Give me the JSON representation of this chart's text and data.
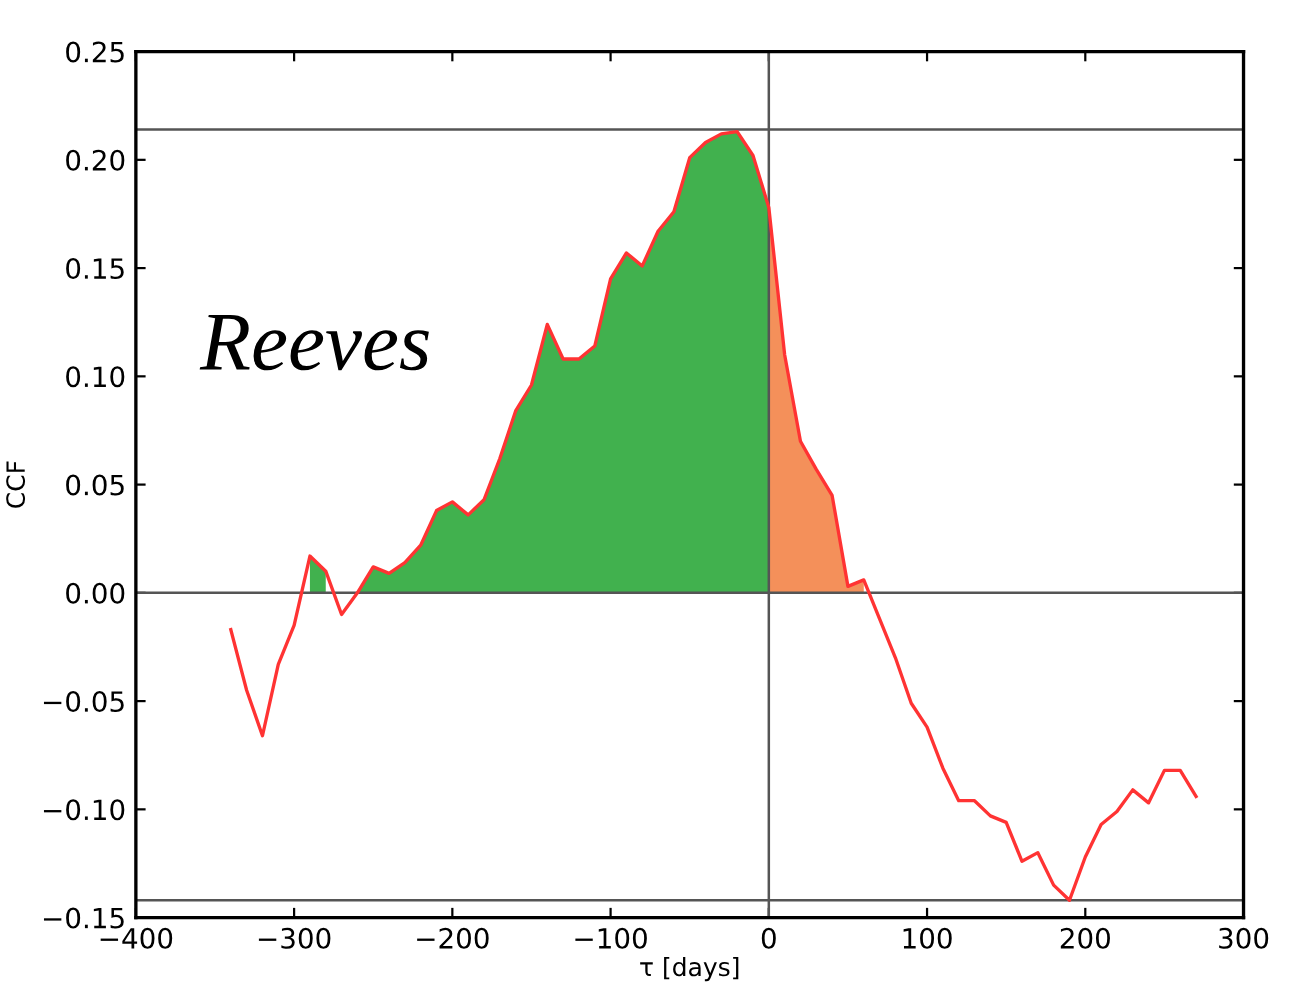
{
  "chart_data": {
    "type": "line",
    "xlabel": "τ [days]",
    "ylabel": "CCF",
    "xlim": [
      -400,
      300
    ],
    "ylim": [
      -0.15,
      0.25
    ],
    "xticks": [
      {
        "value": -400,
        "label": "−400"
      },
      {
        "value": -300,
        "label": "−300"
      },
      {
        "value": -200,
        "label": "−200"
      },
      {
        "value": -100,
        "label": "−100"
      },
      0,
      100,
      200,
      300
    ],
    "yticks": [
      {
        "value": -0.15,
        "label": "−0.15"
      },
      {
        "value": -0.1,
        "label": "−0.10"
      },
      {
        "value": -0.05,
        "label": "−0.05"
      },
      {
        "value": 0,
        "label": "0.00"
      },
      {
        "value": 0.05,
        "label": "0.05"
      },
      {
        "value": 0.1,
        "label": "0.10"
      },
      {
        "value": 0.15,
        "label": "0.15"
      },
      {
        "value": 0.2,
        "label": "0.20"
      },
      {
        "value": 0.25,
        "label": "0.25"
      }
    ],
    "grid": false,
    "annotations": [
      "Reeves"
    ],
    "ref_lines": [
      {
        "axis": "y",
        "value": 0,
        "color": "#555555"
      },
      {
        "axis": "x",
        "value": 0,
        "color": "#555555"
      },
      {
        "axis": "y",
        "value": 0.214,
        "color": "#555555"
      },
      {
        "axis": "y",
        "value": -0.142,
        "color": "#555555"
      }
    ],
    "series": [
      {
        "type": "area",
        "color": "#41b14e",
        "x": [
          -290,
          -280,
          -270,
          -260,
          -250,
          -240,
          -230,
          -220,
          -210,
          -200,
          -190,
          -180,
          -170,
          -160,
          -150,
          -140,
          -130,
          -120,
          -110,
          -100,
          -90,
          -80,
          -70,
          -60,
          -50,
          -40,
          -30,
          -20,
          -10,
          0
        ],
        "values": [
          0.017,
          0.01,
          null,
          0.0,
          0.012,
          0.009,
          0.014,
          0.022,
          0.038,
          0.042,
          0.036,
          0.043,
          0.062,
          0.084,
          0.096,
          0.124,
          0.108,
          0.108,
          0.114,
          0.145,
          0.157,
          0.151,
          0.167,
          0.176,
          0.201,
          0.208,
          0.212,
          0.213,
          0.202,
          0.178
        ]
      },
      {
        "type": "area",
        "color": "#f4905a",
        "x": [
          0,
          10,
          20,
          30,
          40,
          50,
          60
        ],
        "values": [
          0.178,
          0.11,
          0.07,
          0.057,
          0.045,
          0.003,
          0.006
        ]
      },
      {
        "color": "#ff3333",
        "x": [
          -340,
          -330,
          -320,
          -310,
          -300,
          -290,
          -280,
          -270,
          -260,
          -250,
          -240,
          -230,
          -220,
          -210,
          -200,
          -190,
          -180,
          -170,
          -160,
          -150,
          -140,
          -130,
          -120,
          -110,
          -100,
          -90,
          -80,
          -70,
          -60,
          -50,
          -40,
          -30,
          -20,
          -10,
          0,
          10,
          20,
          30,
          40,
          50,
          60,
          70,
          80,
          90,
          100,
          110,
          120,
          130,
          140,
          150,
          160,
          170,
          180,
          190,
          200,
          210,
          220,
          230,
          240,
          250,
          260,
          270
        ],
        "values": [
          -0.017,
          -0.045,
          -0.066,
          -0.033,
          -0.015,
          0.017,
          0.01,
          -0.01,
          0.0,
          0.012,
          0.009,
          0.014,
          0.022,
          0.038,
          0.042,
          0.036,
          0.043,
          0.062,
          0.084,
          0.096,
          0.124,
          0.108,
          0.108,
          0.114,
          0.145,
          0.157,
          0.151,
          0.167,
          0.176,
          0.201,
          0.208,
          0.212,
          0.213,
          0.202,
          0.178,
          0.11,
          0.07,
          0.057,
          0.045,
          0.003,
          0.006,
          -0.012,
          -0.03,
          -0.051,
          -0.062,
          -0.081,
          -0.096,
          -0.096,
          -0.103,
          -0.106,
          -0.124,
          -0.12,
          -0.135,
          -0.142,
          -0.122,
          -0.107,
          -0.101,
          -0.091,
          -0.097,
          -0.082,
          -0.082,
          -0.094
        ]
      }
    ]
  }
}
